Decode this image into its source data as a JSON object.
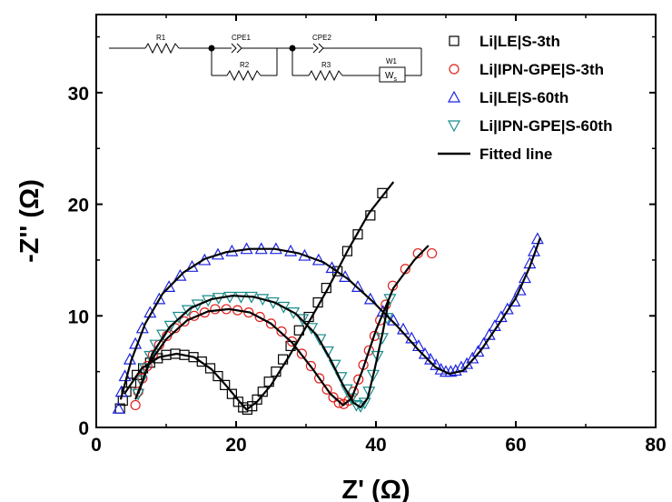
{
  "chart_data": {
    "type": "scatter",
    "xlabel": "Z' (Ω)",
    "ylabel": "-Z'' (Ω)",
    "xlim": [
      0,
      80
    ],
    "ylim": [
      0,
      37
    ],
    "xticks": [
      0,
      20,
      40,
      60,
      80
    ],
    "yticks": [
      0,
      10,
      20,
      30
    ],
    "grid": false,
    "legend_position": "top-right",
    "fit_label": "Fitted line",
    "series": [
      {
        "name": "Li|LE|S-3th",
        "marker": "square",
        "color": "#000000",
        "points": [
          [
            3.4,
            1.7
          ],
          [
            3.8,
            2.4
          ],
          [
            4.3,
            3.2
          ],
          [
            5.0,
            4.0
          ],
          [
            5.8,
            4.7
          ],
          [
            6.7,
            5.3
          ],
          [
            7.7,
            5.8
          ],
          [
            8.8,
            6.2
          ],
          [
            10.0,
            6.5
          ],
          [
            11.3,
            6.6
          ],
          [
            12.6,
            6.5
          ],
          [
            13.9,
            6.3
          ],
          [
            15.1,
            5.9
          ],
          [
            16.3,
            5.3
          ],
          [
            17.4,
            4.6
          ],
          [
            18.4,
            3.8
          ],
          [
            19.4,
            3.0
          ],
          [
            20.3,
            2.3
          ],
          [
            21.0,
            1.8
          ],
          [
            21.6,
            1.6
          ],
          [
            22.3,
            1.9
          ],
          [
            23.0,
            2.5
          ],
          [
            23.8,
            3.2
          ],
          [
            24.7,
            4.1
          ],
          [
            25.7,
            5.0
          ],
          [
            26.7,
            6.1
          ],
          [
            27.8,
            7.3
          ],
          [
            29.0,
            8.7
          ],
          [
            30.4,
            9.9
          ],
          [
            31.7,
            11.2
          ],
          [
            32.9,
            12.5
          ],
          [
            34.5,
            14.0
          ],
          [
            35.9,
            15.8
          ],
          [
            37.4,
            17.3
          ],
          [
            39.2,
            19.0
          ],
          [
            40.9,
            21.0
          ]
        ]
      },
      {
        "name": "Li|IPN-GPE|S-3th",
        "marker": "circle",
        "color": "#e0201c",
        "points": [
          [
            5.6,
            2.0
          ],
          [
            6.0,
            3.2
          ],
          [
            6.6,
            4.4
          ],
          [
            7.3,
            5.5
          ],
          [
            8.1,
            6.5
          ],
          [
            9.0,
            7.4
          ],
          [
            10.1,
            8.2
          ],
          [
            11.3,
            8.9
          ],
          [
            12.6,
            9.5
          ],
          [
            14.0,
            10.0
          ],
          [
            15.5,
            10.3
          ],
          [
            17.0,
            10.6
          ],
          [
            18.6,
            10.6
          ],
          [
            20.2,
            10.5
          ],
          [
            21.8,
            10.3
          ],
          [
            23.4,
            9.9
          ],
          [
            25.0,
            9.3
          ],
          [
            26.5,
            8.6
          ],
          [
            28.0,
            7.7
          ],
          [
            29.4,
            6.6
          ],
          [
            30.7,
            5.5
          ],
          [
            31.9,
            4.4
          ],
          [
            33.0,
            3.4
          ],
          [
            33.9,
            2.7
          ],
          [
            34.7,
            2.2
          ],
          [
            35.4,
            2.1
          ],
          [
            36.1,
            2.4
          ],
          [
            36.8,
            3.2
          ],
          [
            37.5,
            4.3
          ],
          [
            38.2,
            5.6
          ],
          [
            39.0,
            6.9
          ],
          [
            39.8,
            8.2
          ],
          [
            40.6,
            9.6
          ],
          [
            41.4,
            11.0
          ],
          [
            42.4,
            12.7
          ],
          [
            44.2,
            14.2
          ],
          [
            46.0,
            15.6
          ],
          [
            48.0,
            15.6
          ]
        ]
      },
      {
        "name": "Li|LE|S-60th",
        "marker": "triangle-up",
        "color": "#1c22e0",
        "points": [
          [
            3.2,
            1.7
          ],
          [
            3.6,
            3.2
          ],
          [
            4.1,
            4.6
          ],
          [
            4.8,
            6.1
          ],
          [
            5.6,
            7.5
          ],
          [
            6.6,
            8.9
          ],
          [
            7.7,
            10.3
          ],
          [
            9.0,
            11.5
          ],
          [
            10.4,
            12.6
          ],
          [
            12.0,
            13.6
          ],
          [
            13.7,
            14.4
          ],
          [
            15.5,
            15.0
          ],
          [
            17.4,
            15.5
          ],
          [
            19.4,
            15.8
          ],
          [
            21.5,
            16.0
          ],
          [
            23.6,
            16.0
          ],
          [
            25.7,
            16.0
          ],
          [
            27.8,
            15.8
          ],
          [
            29.8,
            15.4
          ],
          [
            31.8,
            15.0
          ],
          [
            33.7,
            14.3
          ],
          [
            35.6,
            13.5
          ],
          [
            37.4,
            12.6
          ],
          [
            39.2,
            11.5
          ],
          [
            41.0,
            10.4
          ],
          [
            42.5,
            9.6
          ],
          [
            43.9,
            8.8
          ],
          [
            45.1,
            8.0
          ],
          [
            46.1,
            7.3
          ],
          [
            47.0,
            6.6
          ],
          [
            47.8,
            6.1
          ],
          [
            48.6,
            5.6
          ],
          [
            49.3,
            5.2
          ],
          [
            50.0,
            5.0
          ],
          [
            50.7,
            5.0
          ],
          [
            51.4,
            5.1
          ],
          [
            52.2,
            5.4
          ],
          [
            53.0,
            5.7
          ],
          [
            53.8,
            6.2
          ],
          [
            54.6,
            6.8
          ],
          [
            55.4,
            7.5
          ],
          [
            56.2,
            8.3
          ],
          [
            57.0,
            9.1
          ],
          [
            57.9,
            9.9
          ],
          [
            58.8,
            10.6
          ],
          [
            59.8,
            11.3
          ],
          [
            60.6,
            12.3
          ],
          [
            61.3,
            13.4
          ],
          [
            62.0,
            14.7
          ],
          [
            62.6,
            15.8
          ],
          [
            63.1,
            16.9
          ]
        ]
      },
      {
        "name": "Li|IPN-GPE|S-60th",
        "marker": "triangle-down",
        "color": "#1a8c8c",
        "points": [
          [
            6.0,
            3.0
          ],
          [
            6.4,
            4.2
          ],
          [
            7.0,
            5.3
          ],
          [
            7.7,
            6.4
          ],
          [
            8.5,
            7.4
          ],
          [
            9.5,
            8.3
          ],
          [
            10.6,
            9.1
          ],
          [
            11.8,
            9.9
          ],
          [
            13.1,
            10.5
          ],
          [
            14.5,
            11.0
          ],
          [
            16.0,
            11.4
          ],
          [
            17.5,
            11.6
          ],
          [
            19.1,
            11.7
          ],
          [
            20.7,
            11.7
          ],
          [
            22.2,
            11.7
          ],
          [
            23.8,
            11.5
          ],
          [
            25.3,
            11.2
          ],
          [
            26.8,
            10.8
          ],
          [
            28.2,
            10.3
          ],
          [
            29.5,
            9.7
          ],
          [
            30.8,
            8.9
          ],
          [
            32.0,
            7.9
          ],
          [
            33.1,
            6.8
          ],
          [
            34.1,
            5.6
          ],
          [
            35.0,
            4.5
          ],
          [
            35.8,
            3.4
          ],
          [
            36.5,
            2.6
          ],
          [
            37.2,
            2.0
          ],
          [
            37.8,
            1.9
          ],
          [
            38.4,
            2.2
          ],
          [
            39.0,
            3.2
          ],
          [
            39.6,
            4.7
          ],
          [
            40.2,
            6.4
          ],
          [
            40.9,
            8.0
          ],
          [
            41.6,
            9.8
          ],
          [
            42.0,
            11.5
          ]
        ]
      }
    ],
    "fits": [
      {
        "name": "fit-li-le-s-3th",
        "points": [
          [
            4.0,
            3.0
          ],
          [
            6.5,
            5.3
          ],
          [
            9.0,
            6.3
          ],
          [
            11.5,
            6.6
          ],
          [
            14.0,
            6.3
          ],
          [
            16.5,
            5.2
          ],
          [
            18.5,
            3.8
          ],
          [
            20.5,
            2.3
          ],
          [
            21.5,
            1.6
          ],
          [
            23.0,
            2.3
          ],
          [
            25.0,
            3.8
          ],
          [
            27.5,
            6.3
          ],
          [
            30.0,
            9.0
          ],
          [
            33.0,
            12.3
          ],
          [
            36.0,
            15.9
          ],
          [
            39.0,
            19.2
          ],
          [
            42.5,
            22.0
          ]
        ]
      },
      {
        "name": "fit-li-ipn-gpe-s-3th",
        "points": [
          [
            5.6,
            2.5
          ],
          [
            7.5,
            5.7
          ],
          [
            10.0,
            7.9
          ],
          [
            13.0,
            9.6
          ],
          [
            16.0,
            10.4
          ],
          [
            19.0,
            10.6
          ],
          [
            22.0,
            10.3
          ],
          [
            25.0,
            9.3
          ],
          [
            28.0,
            7.6
          ],
          [
            31.0,
            5.2
          ],
          [
            33.5,
            3.0
          ],
          [
            35.3,
            2.0
          ],
          [
            36.5,
            2.6
          ],
          [
            38.0,
            5.0
          ],
          [
            40.0,
            8.7
          ],
          [
            42.5,
            12.5
          ],
          [
            45.5,
            15.0
          ],
          [
            47.5,
            16.3
          ]
        ]
      },
      {
        "name": "fit-li-le-s-60th",
        "points": [
          [
            3.5,
            2.5
          ],
          [
            5.0,
            6.0
          ],
          [
            7.0,
            9.3
          ],
          [
            9.5,
            12.0
          ],
          [
            12.5,
            13.9
          ],
          [
            15.5,
            15.1
          ],
          [
            18.5,
            15.7
          ],
          [
            22.0,
            16.0
          ],
          [
            25.5,
            16.0
          ],
          [
            29.0,
            15.6
          ],
          [
            32.5,
            14.8
          ],
          [
            36.0,
            13.3
          ],
          [
            39.5,
            11.3
          ],
          [
            43.0,
            9.1
          ],
          [
            46.0,
            7.0
          ],
          [
            48.5,
            5.4
          ],
          [
            50.5,
            4.8
          ],
          [
            52.5,
            5.1
          ],
          [
            55.0,
            6.9
          ],
          [
            57.5,
            9.2
          ],
          [
            60.0,
            11.6
          ],
          [
            62.0,
            14.4
          ],
          [
            63.5,
            17.0
          ]
        ]
      },
      {
        "name": "fit-li-ipn-gpe-s-60th",
        "points": [
          [
            6.0,
            3.0
          ],
          [
            8.0,
            6.6
          ],
          [
            10.5,
            9.0
          ],
          [
            13.5,
            10.7
          ],
          [
            16.5,
            11.5
          ],
          [
            19.5,
            11.8
          ],
          [
            22.5,
            11.7
          ],
          [
            25.5,
            11.2
          ],
          [
            28.5,
            10.2
          ],
          [
            31.5,
            8.3
          ],
          [
            33.5,
            6.1
          ],
          [
            35.3,
            3.8
          ],
          [
            36.8,
            2.2
          ],
          [
            37.8,
            1.8
          ],
          [
            38.8,
            2.6
          ],
          [
            39.8,
            5.2
          ],
          [
            41.0,
            8.6
          ],
          [
            41.8,
            11.3
          ]
        ]
      }
    ],
    "circuit": {
      "labels": [
        "R1",
        "CPE1",
        "R2",
        "CPE2",
        "R3",
        "W1"
      ],
      "warburg_symbol": "W",
      "warburg_subscript": "s"
    }
  }
}
